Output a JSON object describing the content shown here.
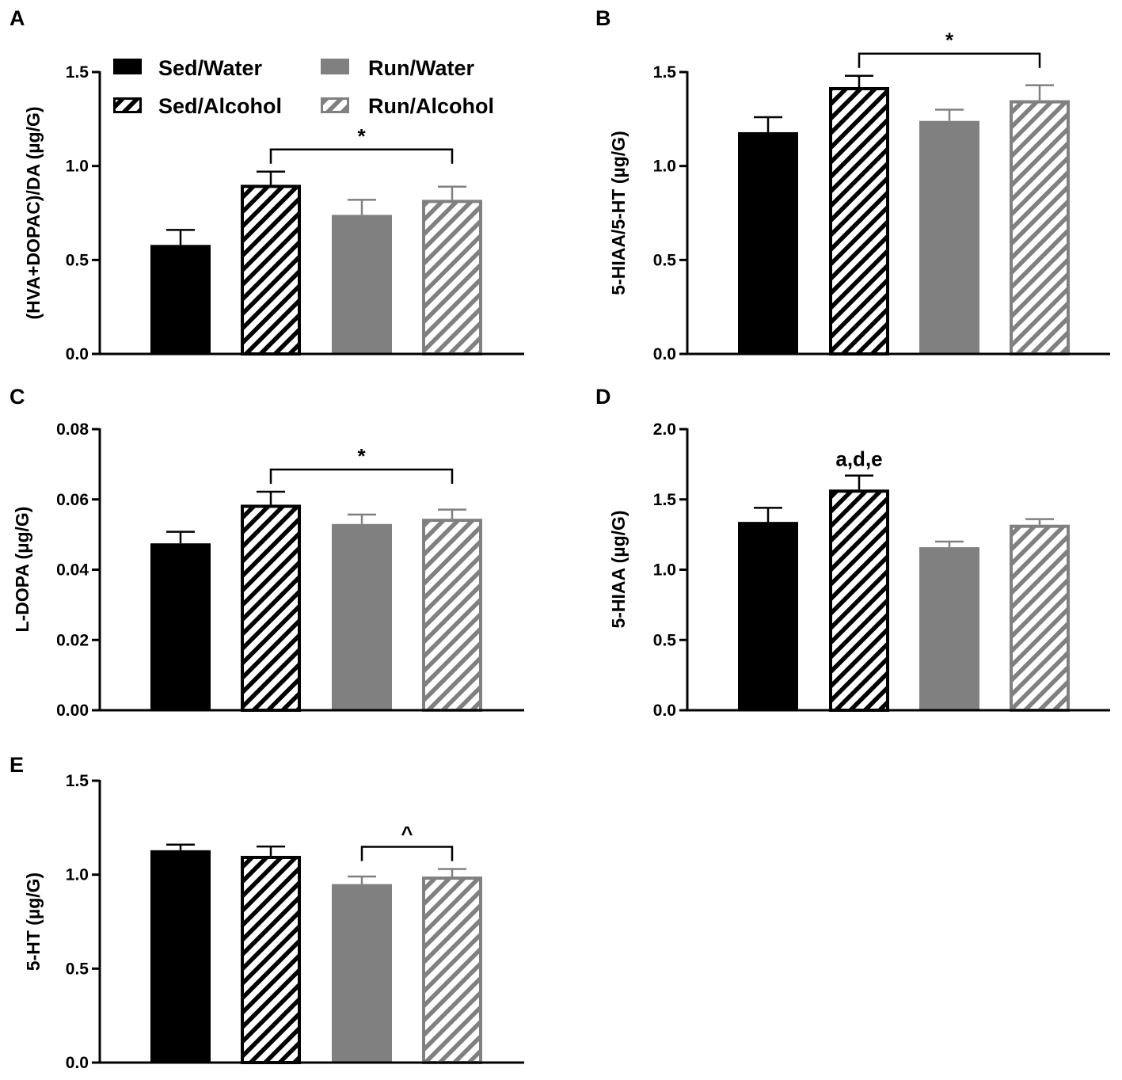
{
  "legend": {
    "items": [
      {
        "label": "Sed/Water",
        "group": 0
      },
      {
        "label": "Run/Water",
        "group": 2
      },
      {
        "label": "Sed/Alcohol",
        "group": 1
      },
      {
        "label": "Run/Alcohol",
        "group": 3
      }
    ]
  },
  "groups": [
    {
      "name": "Sed/Water",
      "color": "#000000",
      "hatched": false
    },
    {
      "name": "Sed/Alcohol",
      "color": "#000000",
      "hatched": true
    },
    {
      "name": "Run/Water",
      "color": "#808080",
      "hatched": false
    },
    {
      "name": "Run/Alcohol",
      "color": "#808080",
      "hatched": true
    }
  ],
  "chart_data": [
    {
      "panel": "A",
      "type": "bar",
      "ylabel": "(HVA+DOPAC)/DA (µg/G)",
      "ylim": [
        0,
        1.5
      ],
      "yticks": [
        "0.0",
        "0.5",
        "1.0",
        "1.5"
      ],
      "categories": [
        "Sed/Water",
        "Sed/Alcohol",
        "Run/Water",
        "Run/Alcohol"
      ],
      "values": [
        0.58,
        0.9,
        0.74,
        0.82
      ],
      "errors": [
        0.08,
        0.07,
        0.08,
        0.07
      ],
      "brackets": [
        {
          "from": 1,
          "to": 3,
          "label": "*"
        }
      ],
      "annotations": []
    },
    {
      "panel": "B",
      "type": "bar",
      "ylabel": "5-HIAA/5-HT (µg/G)",
      "ylim": [
        0,
        1.5
      ],
      "yticks": [
        "0.0",
        "0.5",
        "1.0",
        "1.5"
      ],
      "categories": [
        "Sed/Water",
        "Sed/Alcohol",
        "Run/Water",
        "Run/Alcohol"
      ],
      "values": [
        1.18,
        1.42,
        1.24,
        1.35
      ],
      "errors": [
        0.08,
        0.06,
        0.06,
        0.08
      ],
      "brackets": [
        {
          "from": 1,
          "to": 3,
          "label": "*"
        }
      ],
      "annotations": []
    },
    {
      "panel": "C",
      "type": "bar",
      "ylabel": "L-DOPA (µg/G)",
      "ylim": [
        0,
        0.08
      ],
      "yticks": [
        "0.00",
        "0.02",
        "0.04",
        "0.06",
        "0.08"
      ],
      "categories": [
        "Sed/Water",
        "Sed/Alcohol",
        "Run/Water",
        "Run/Alcohol"
      ],
      "values": [
        0.0475,
        0.0585,
        0.053,
        0.0545
      ],
      "errors": [
        0.0033,
        0.0037,
        0.0027,
        0.0026
      ],
      "brackets": [
        {
          "from": 1,
          "to": 3,
          "label": "*"
        }
      ],
      "annotations": []
    },
    {
      "panel": "D",
      "type": "bar",
      "ylabel": "5-HIAA (µg/G)",
      "ylim": [
        0,
        2.0
      ],
      "yticks": [
        "0.0",
        "0.5",
        "1.0",
        "1.5",
        "2.0"
      ],
      "categories": [
        "Sed/Water",
        "Sed/Alcohol",
        "Run/Water",
        "Run/Alcohol"
      ],
      "values": [
        1.34,
        1.57,
        1.16,
        1.32
      ],
      "errors": [
        0.1,
        0.1,
        0.04,
        0.04
      ],
      "brackets": [],
      "annotations": [
        {
          "bar": 1,
          "label": "a,d,e"
        }
      ]
    },
    {
      "panel": "E",
      "type": "bar",
      "ylabel": "5-HT (µg/G)",
      "ylim": [
        0,
        1.5
      ],
      "yticks": [
        "0.0",
        "0.5",
        "1.0",
        "1.5"
      ],
      "categories": [
        "Sed/Water",
        "Sed/Alcohol",
        "Run/Water",
        "Run/Alcohol"
      ],
      "values": [
        1.13,
        1.1,
        0.95,
        0.99
      ],
      "errors": [
        0.03,
        0.05,
        0.04,
        0.04
      ],
      "brackets": [
        {
          "from": 2,
          "to": 3,
          "label": "^"
        }
      ],
      "annotations": []
    }
  ]
}
